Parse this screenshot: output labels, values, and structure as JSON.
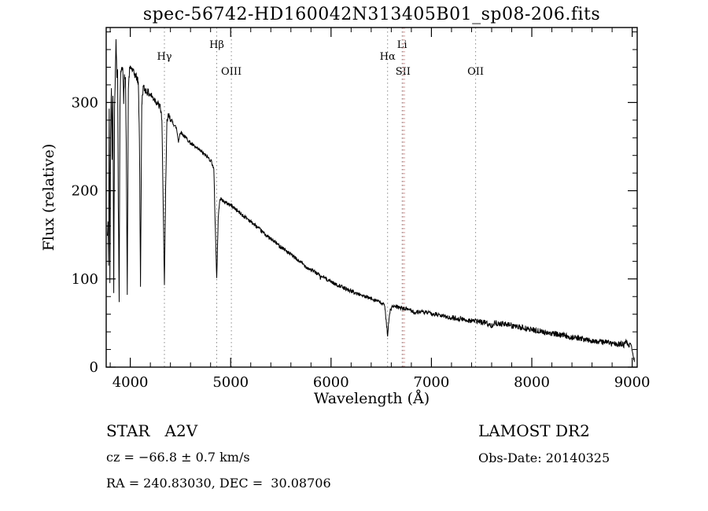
{
  "chart_data": {
    "type": "line",
    "title": "spec-56742-HD160042N313405B01_sp08-206.fits",
    "xlabel": "Wavelength (Å)",
    "ylabel": "Flux (relative)",
    "xlim": [
      3760,
      9050
    ],
    "ylim": [
      0,
      385
    ],
    "x_major_ticks": [
      4000,
      5000,
      6000,
      7000,
      8000,
      9000
    ],
    "x_minor_step": 200,
    "y_major_ticks": [
      0,
      100,
      200,
      300
    ],
    "y_minor_step": 20,
    "grid": false,
    "legend": "none",
    "line_color": "#000000",
    "frame_color": "#000000",
    "noise": {
      "seed": 42,
      "step": 3,
      "amp_zones": [
        [
          4400,
          4.5
        ],
        [
          7200,
          2.2
        ],
        [
          9999,
          3.2
        ]
      ]
    },
    "line_markers": [
      {
        "label": "Hγ",
        "wavelength": 4340,
        "color": "#8a8a8a",
        "label_row": 1
      },
      {
        "label": "Hβ",
        "wavelength": 4861,
        "color": "#8a8a8a",
        "label_row": 0
      },
      {
        "label": "OIII",
        "wavelength": 5007,
        "color": "#8a8a8a",
        "label_row": 2
      },
      {
        "label": "Hα",
        "wavelength": 6563,
        "color": "#8a8a8a",
        "label_row": 1
      },
      {
        "label": "Li",
        "wavelength": 6708,
        "color": "#8a8a8a",
        "label_row": 0
      },
      {
        "label": "SII",
        "wavelength": 6717,
        "color": "#c4807f",
        "label_row": 2
      },
      {
        "label": "",
        "wavelength": 6731,
        "color": "#c4807f",
        "label_row": 2
      },
      {
        "label": "OII",
        "wavelength": 7440,
        "color": "#8a8a8a",
        "label_row": 2
      }
    ],
    "spectrum_anchors": [
      [
        3772,
        148
      ],
      [
        3778,
        162
      ],
      [
        3784,
        118
      ],
      [
        3790,
        295
      ],
      [
        3797,
        92
      ],
      [
        3804,
        265
      ],
      [
        3812,
        318
      ],
      [
        3819,
        235
      ],
      [
        3827,
        312
      ],
      [
        3835,
        88
      ],
      [
        3843,
        298
      ],
      [
        3851,
        332
      ],
      [
        3858,
        376
      ],
      [
        3866,
        328
      ],
      [
        3874,
        338
      ],
      [
        3881,
        185
      ],
      [
        3889,
        76
      ],
      [
        3897,
        298
      ],
      [
        3906,
        336
      ],
      [
        3915,
        342
      ],
      [
        3925,
        337
      ],
      [
        3934,
        302
      ],
      [
        3942,
        328
      ],
      [
        3951,
        333
      ],
      [
        3960,
        252
      ],
      [
        3970,
        80
      ],
      [
        3981,
        318
      ],
      [
        3993,
        336
      ],
      [
        4006,
        340
      ],
      [
        4020,
        337
      ],
      [
        4035,
        333
      ],
      [
        4050,
        331
      ],
      [
        4065,
        328
      ],
      [
        4080,
        322
      ],
      [
        4091,
        262
      ],
      [
        4102,
        90
      ],
      [
        4114,
        298
      ],
      [
        4128,
        317
      ],
      [
        4143,
        315
      ],
      [
        4160,
        313
      ],
      [
        4180,
        311
      ],
      [
        4200,
        309
      ],
      [
        4220,
        306
      ],
      [
        4240,
        304
      ],
      [
        4260,
        301
      ],
      [
        4280,
        297
      ],
      [
        4300,
        294
      ],
      [
        4315,
        281
      ],
      [
        4329,
        172
      ],
      [
        4340,
        96
      ],
      [
        4352,
        198
      ],
      [
        4365,
        278
      ],
      [
        4380,
        285
      ],
      [
        4400,
        281
      ],
      [
        4420,
        278
      ],
      [
        4440,
        274
      ],
      [
        4460,
        271
      ],
      [
        4480,
        256
      ],
      [
        4500,
        267
      ],
      [
        4520,
        264
      ],
      [
        4545,
        261
      ],
      [
        4570,
        258
      ],
      [
        4600,
        254
      ],
      [
        4630,
        251
      ],
      [
        4660,
        248
      ],
      [
        4690,
        246
      ],
      [
        4720,
        243
      ],
      [
        4750,
        240
      ],
      [
        4780,
        237
      ],
      [
        4810,
        233
      ],
      [
        4832,
        224
      ],
      [
        4847,
        158
      ],
      [
        4861,
        100
      ],
      [
        4876,
        168
      ],
      [
        4891,
        191
      ],
      [
        4910,
        190
      ],
      [
        4930,
        188
      ],
      [
        4955,
        186
      ],
      [
        4980,
        185
      ],
      [
        5010,
        183
      ],
      [
        5040,
        180
      ],
      [
        5070,
        177
      ],
      [
        5100,
        174
      ],
      [
        5130,
        171
      ],
      [
        5160,
        169
      ],
      [
        5190,
        166
      ],
      [
        5220,
        163
      ],
      [
        5250,
        160
      ],
      [
        5280,
        157
      ],
      [
        5310,
        154
      ],
      [
        5340,
        151
      ],
      [
        5370,
        148
      ],
      [
        5400,
        145
      ],
      [
        5430,
        143
      ],
      [
        5460,
        140
      ],
      [
        5490,
        137
      ],
      [
        5520,
        135
      ],
      [
        5550,
        132
      ],
      [
        5580,
        129
      ],
      [
        5610,
        127
      ],
      [
        5640,
        124
      ],
      [
        5670,
        121
      ],
      [
        5700,
        119
      ],
      [
        5730,
        116
      ],
      [
        5760,
        113
      ],
      [
        5790,
        111
      ],
      [
        5820,
        109
      ],
      [
        5850,
        107
      ],
      [
        5880,
        105
      ],
      [
        5893,
        101
      ],
      [
        5910,
        103
      ],
      [
        5940,
        101
      ],
      [
        5970,
        99
      ],
      [
        6000,
        97
      ],
      [
        6030,
        95
      ],
      [
        6060,
        93
      ],
      [
        6090,
        92
      ],
      [
        6120,
        90
      ],
      [
        6150,
        89
      ],
      [
        6180,
        87
      ],
      [
        6210,
        86
      ],
      [
        6240,
        84
      ],
      [
        6270,
        83
      ],
      [
        6300,
        82
      ],
      [
        6330,
        80
      ],
      [
        6360,
        79
      ],
      [
        6390,
        78
      ],
      [
        6420,
        77
      ],
      [
        6450,
        76
      ],
      [
        6480,
        74
      ],
      [
        6510,
        72
      ],
      [
        6535,
        69
      ],
      [
        6552,
        50
      ],
      [
        6563,
        36
      ],
      [
        6574,
        50
      ],
      [
        6590,
        65
      ],
      [
        6615,
        69
      ],
      [
        6640,
        68
      ],
      [
        6670,
        68
      ],
      [
        6700,
        67
      ],
      [
        6730,
        66
      ],
      [
        6760,
        66
      ],
      [
        6790,
        65
      ],
      [
        6815,
        63
      ],
      [
        6840,
        61
      ],
      [
        6865,
        63
      ],
      [
        6890,
        63
      ],
      [
        6920,
        62
      ],
      [
        6950,
        62
      ],
      [
        6980,
        61
      ],
      [
        7010,
        60
      ],
      [
        7040,
        60
      ],
      [
        7070,
        59
      ],
      [
        7100,
        58
      ],
      [
        7130,
        58
      ],
      [
        7160,
        57
      ],
      [
        7190,
        55
      ],
      [
        7220,
        56
      ],
      [
        7250,
        55
      ],
      [
        7280,
        55
      ],
      [
        7310,
        54
      ],
      [
        7340,
        54
      ],
      [
        7370,
        53
      ],
      [
        7400,
        53
      ],
      [
        7430,
        52
      ],
      [
        7460,
        52
      ],
      [
        7490,
        51
      ],
      [
        7520,
        51
      ],
      [
        7550,
        50
      ],
      [
        7580,
        47
      ],
      [
        7605,
        48
      ],
      [
        7630,
        50
      ],
      [
        7660,
        50
      ],
      [
        7690,
        49
      ],
      [
        7720,
        49
      ],
      [
        7750,
        48
      ],
      [
        7780,
        48
      ],
      [
        7810,
        47
      ],
      [
        7840,
        46
      ],
      [
        7870,
        45
      ],
      [
        7900,
        45
      ],
      [
        7930,
        44
      ],
      [
        7960,
        43
      ],
      [
        7990,
        43
      ],
      [
        8020,
        42
      ],
      [
        8050,
        41
      ],
      [
        8080,
        41
      ],
      [
        8110,
        40
      ],
      [
        8140,
        39
      ],
      [
        8170,
        39
      ],
      [
        8200,
        38
      ],
      [
        8230,
        38
      ],
      [
        8260,
        37
      ],
      [
        8290,
        36
      ],
      [
        8320,
        36
      ],
      [
        8350,
        35
      ],
      [
        8380,
        34
      ],
      [
        8410,
        34
      ],
      [
        8440,
        33
      ],
      [
        8470,
        33
      ],
      [
        8500,
        32
      ],
      [
        8530,
        31
      ],
      [
        8560,
        31
      ],
      [
        8590,
        30
      ],
      [
        8620,
        30
      ],
      [
        8650,
        29
      ],
      [
        8680,
        29
      ],
      [
        8710,
        28
      ],
      [
        8740,
        29
      ],
      [
        8770,
        28
      ],
      [
        8800,
        26
      ],
      [
        8830,
        27
      ],
      [
        8860,
        25
      ],
      [
        8890,
        27
      ],
      [
        8920,
        25
      ],
      [
        8945,
        29
      ],
      [
        8965,
        24
      ],
      [
        8985,
        26
      ],
      [
        9000,
        21
      ],
      [
        9012,
        13
      ],
      [
        9022,
        6
      ]
    ]
  },
  "annotations": {
    "class_label": "STAR   A2V",
    "survey": "LAMOST DR2",
    "cz": "cz = −66.8 ± 0.7 km/s",
    "obs_date": "Obs-Date: 20140325",
    "coords": "RA = 240.83030, DEC =  30.08706"
  }
}
